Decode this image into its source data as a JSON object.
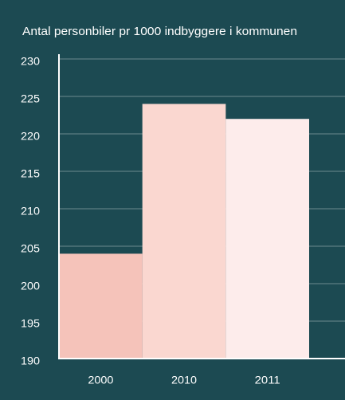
{
  "chart_data": {
    "type": "bar",
    "title": "Antal personbiler pr 1000 indbyggere i kommunen",
    "categories": [
      "2000",
      "2010",
      "2011"
    ],
    "values": [
      204,
      224,
      222
    ],
    "colors": [
      "#f5c3ba",
      "#fad7d0",
      "#fdeceb"
    ],
    "ylim": [
      190,
      230
    ],
    "yticks": [
      190,
      195,
      200,
      205,
      210,
      215,
      220,
      225,
      230
    ],
    "grid": true
  }
}
